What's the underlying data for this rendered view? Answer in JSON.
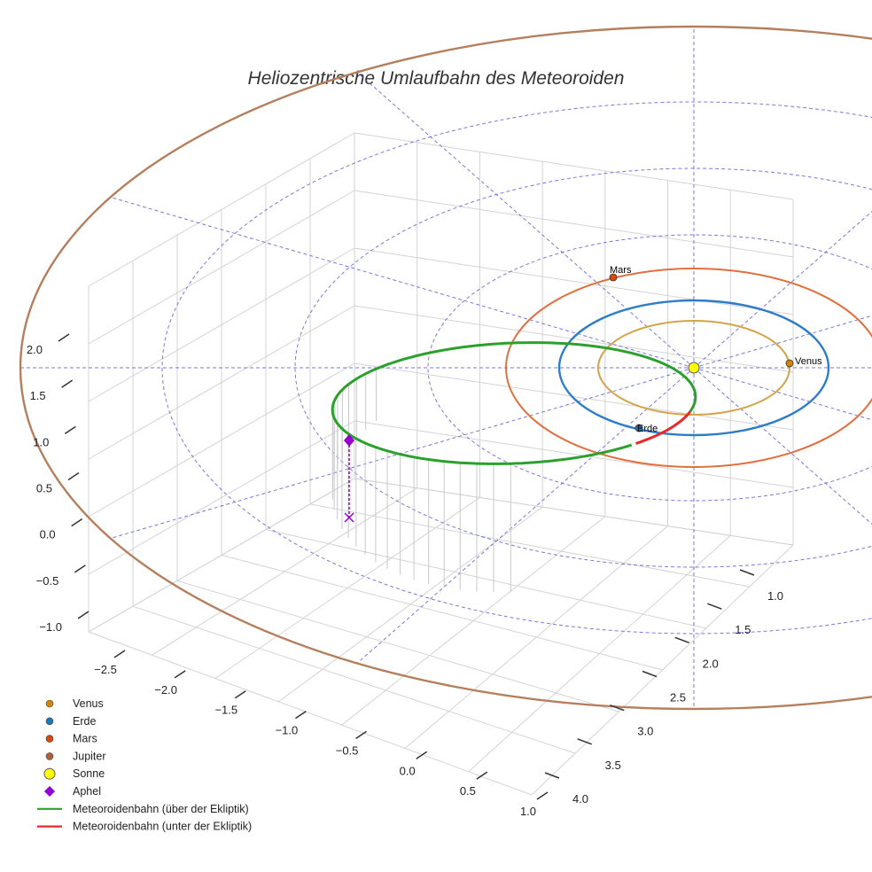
{
  "chart_data": {
    "type": "line",
    "projection": "3d",
    "title": "Heliozentrische Umlaufbahn des Meteoroiden",
    "x_axis": {
      "ticks": [
        "−2.5",
        "−2.0",
        "−1.5",
        "−1.0",
        "−0.5",
        "0.0",
        "0.5",
        "1.0"
      ],
      "range": [
        -2.5,
        1.0
      ]
    },
    "y_axis": {
      "ticks": [
        "1.0",
        "1.5",
        "2.0",
        "2.5",
        "3.0",
        "3.5",
        "4.0"
      ],
      "range": [
        1.0,
        4.0
      ]
    },
    "z_axis": {
      "ticks": [
        "−1.0",
        "−0.5",
        "0.0",
        "0.5",
        "1.0",
        "1.5",
        "2.0"
      ],
      "range": [
        -1.0,
        2.0
      ]
    },
    "orbits": [
      {
        "name": "Venus",
        "radius_au": 0.72,
        "color": "#D4A44A"
      },
      {
        "name": "Erde",
        "radius_au": 1.0,
        "color": "#2F7DC8"
      },
      {
        "name": "Mars",
        "radius_au": 1.52,
        "color": "#E07040"
      },
      {
        "name": "Jupiter",
        "radius_au": 5.2,
        "color": "#B57F5E"
      }
    ],
    "planets": [
      {
        "name": "Venus",
        "label": "Venus",
        "color": "#D4840C"
      },
      {
        "name": "Erde",
        "label": "Erde",
        "color": "#1F77B4"
      },
      {
        "name": "Mars",
        "label": "Mars",
        "color": "#D64A0F"
      },
      {
        "name": "Jupiter",
        "label": "",
        "color": "#B0603A"
      }
    ],
    "sun": {
      "name": "Sonne",
      "color": "#FFFF00"
    },
    "aphel": {
      "name": "Aphel",
      "color": "#9400D3",
      "marker": "diamond"
    },
    "series": [
      {
        "name": "Meteoroidenbahn (über der Ekliptik)",
        "color": "#2CA02C"
      },
      {
        "name": "Meteoroidenbahn (unter der Ekliptik)",
        "color": "#E8282A"
      }
    ],
    "legend": [
      {
        "label": "Venus",
        "kind": "dot",
        "color": "#D4840C"
      },
      {
        "label": "Erde",
        "kind": "dot",
        "color": "#1F77B4"
      },
      {
        "label": "Mars",
        "kind": "dot",
        "color": "#D64A0F"
      },
      {
        "label": "Jupiter",
        "kind": "dot",
        "color": "#B0603A"
      },
      {
        "label": "Sonne",
        "kind": "sun",
        "color": "#FFFF00"
      },
      {
        "label": "Aphel",
        "kind": "diamond",
        "color": "#9400D3"
      },
      {
        "label": "Meteoroidenbahn (über der Ekliptik)",
        "kind": "line",
        "color": "#2CA02C"
      },
      {
        "label": "Meteoroidenbahn (unter der Ekliptik)",
        "kind": "line",
        "color": "#E8282A"
      }
    ],
    "legend_position": "bottom-left",
    "grid": true,
    "ecliptic_grid": "dashed-blue"
  }
}
